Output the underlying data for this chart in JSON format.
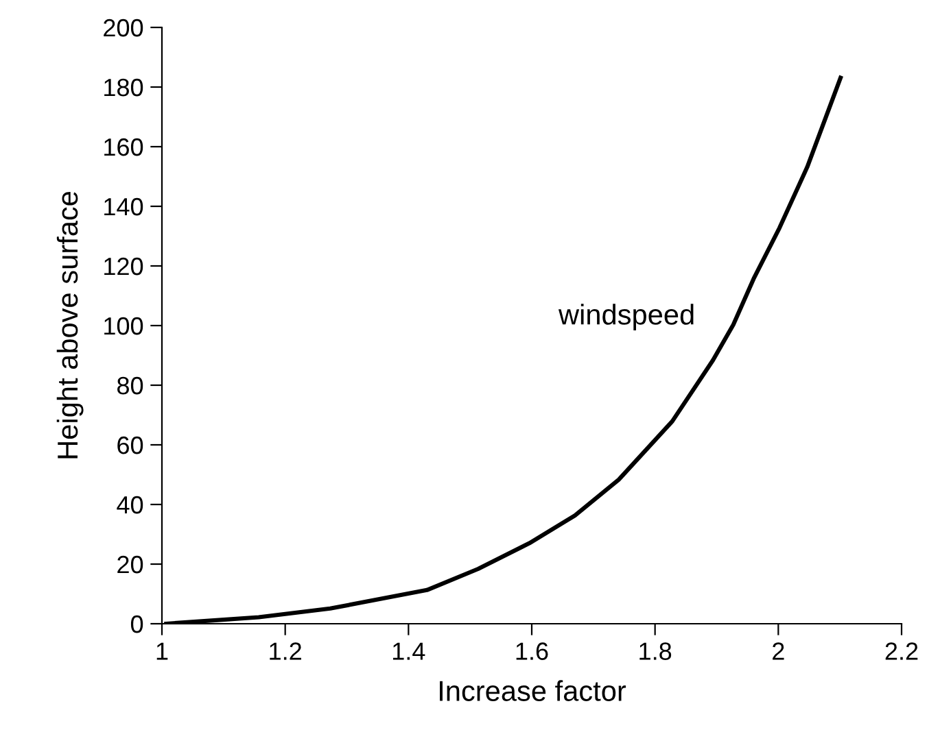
{
  "chart_data": {
    "type": "line",
    "xlabel": "Increase factor",
    "ylabel": "Height above surface",
    "series": [
      {
        "name": "windspeed",
        "color": "#000000",
        "x": [
          1.007,
          1.157,
          1.273,
          1.43,
          1.513,
          1.596,
          1.67,
          1.741,
          1.828,
          1.894,
          1.927,
          1.96,
          2.002,
          2.047,
          2.101
        ],
        "values": [
          0,
          2.2,
          5.1,
          11.3,
          18.4,
          27,
          36.3,
          48.3,
          67.9,
          88.4,
          100.3,
          115.7,
          132.8,
          153.2,
          183.1
        ]
      }
    ],
    "xlim": [
      1,
      2.2
    ],
    "xticks": [
      1,
      1.2,
      1.4,
      1.6,
      1.8,
      2,
      2.2
    ],
    "ylim": [
      0,
      200
    ],
    "yticks": [
      0,
      20,
      40,
      60,
      80,
      100,
      120,
      140,
      160,
      180,
      200
    ],
    "grid": false,
    "legend": false,
    "marker": "none",
    "line_style": "solid"
  }
}
